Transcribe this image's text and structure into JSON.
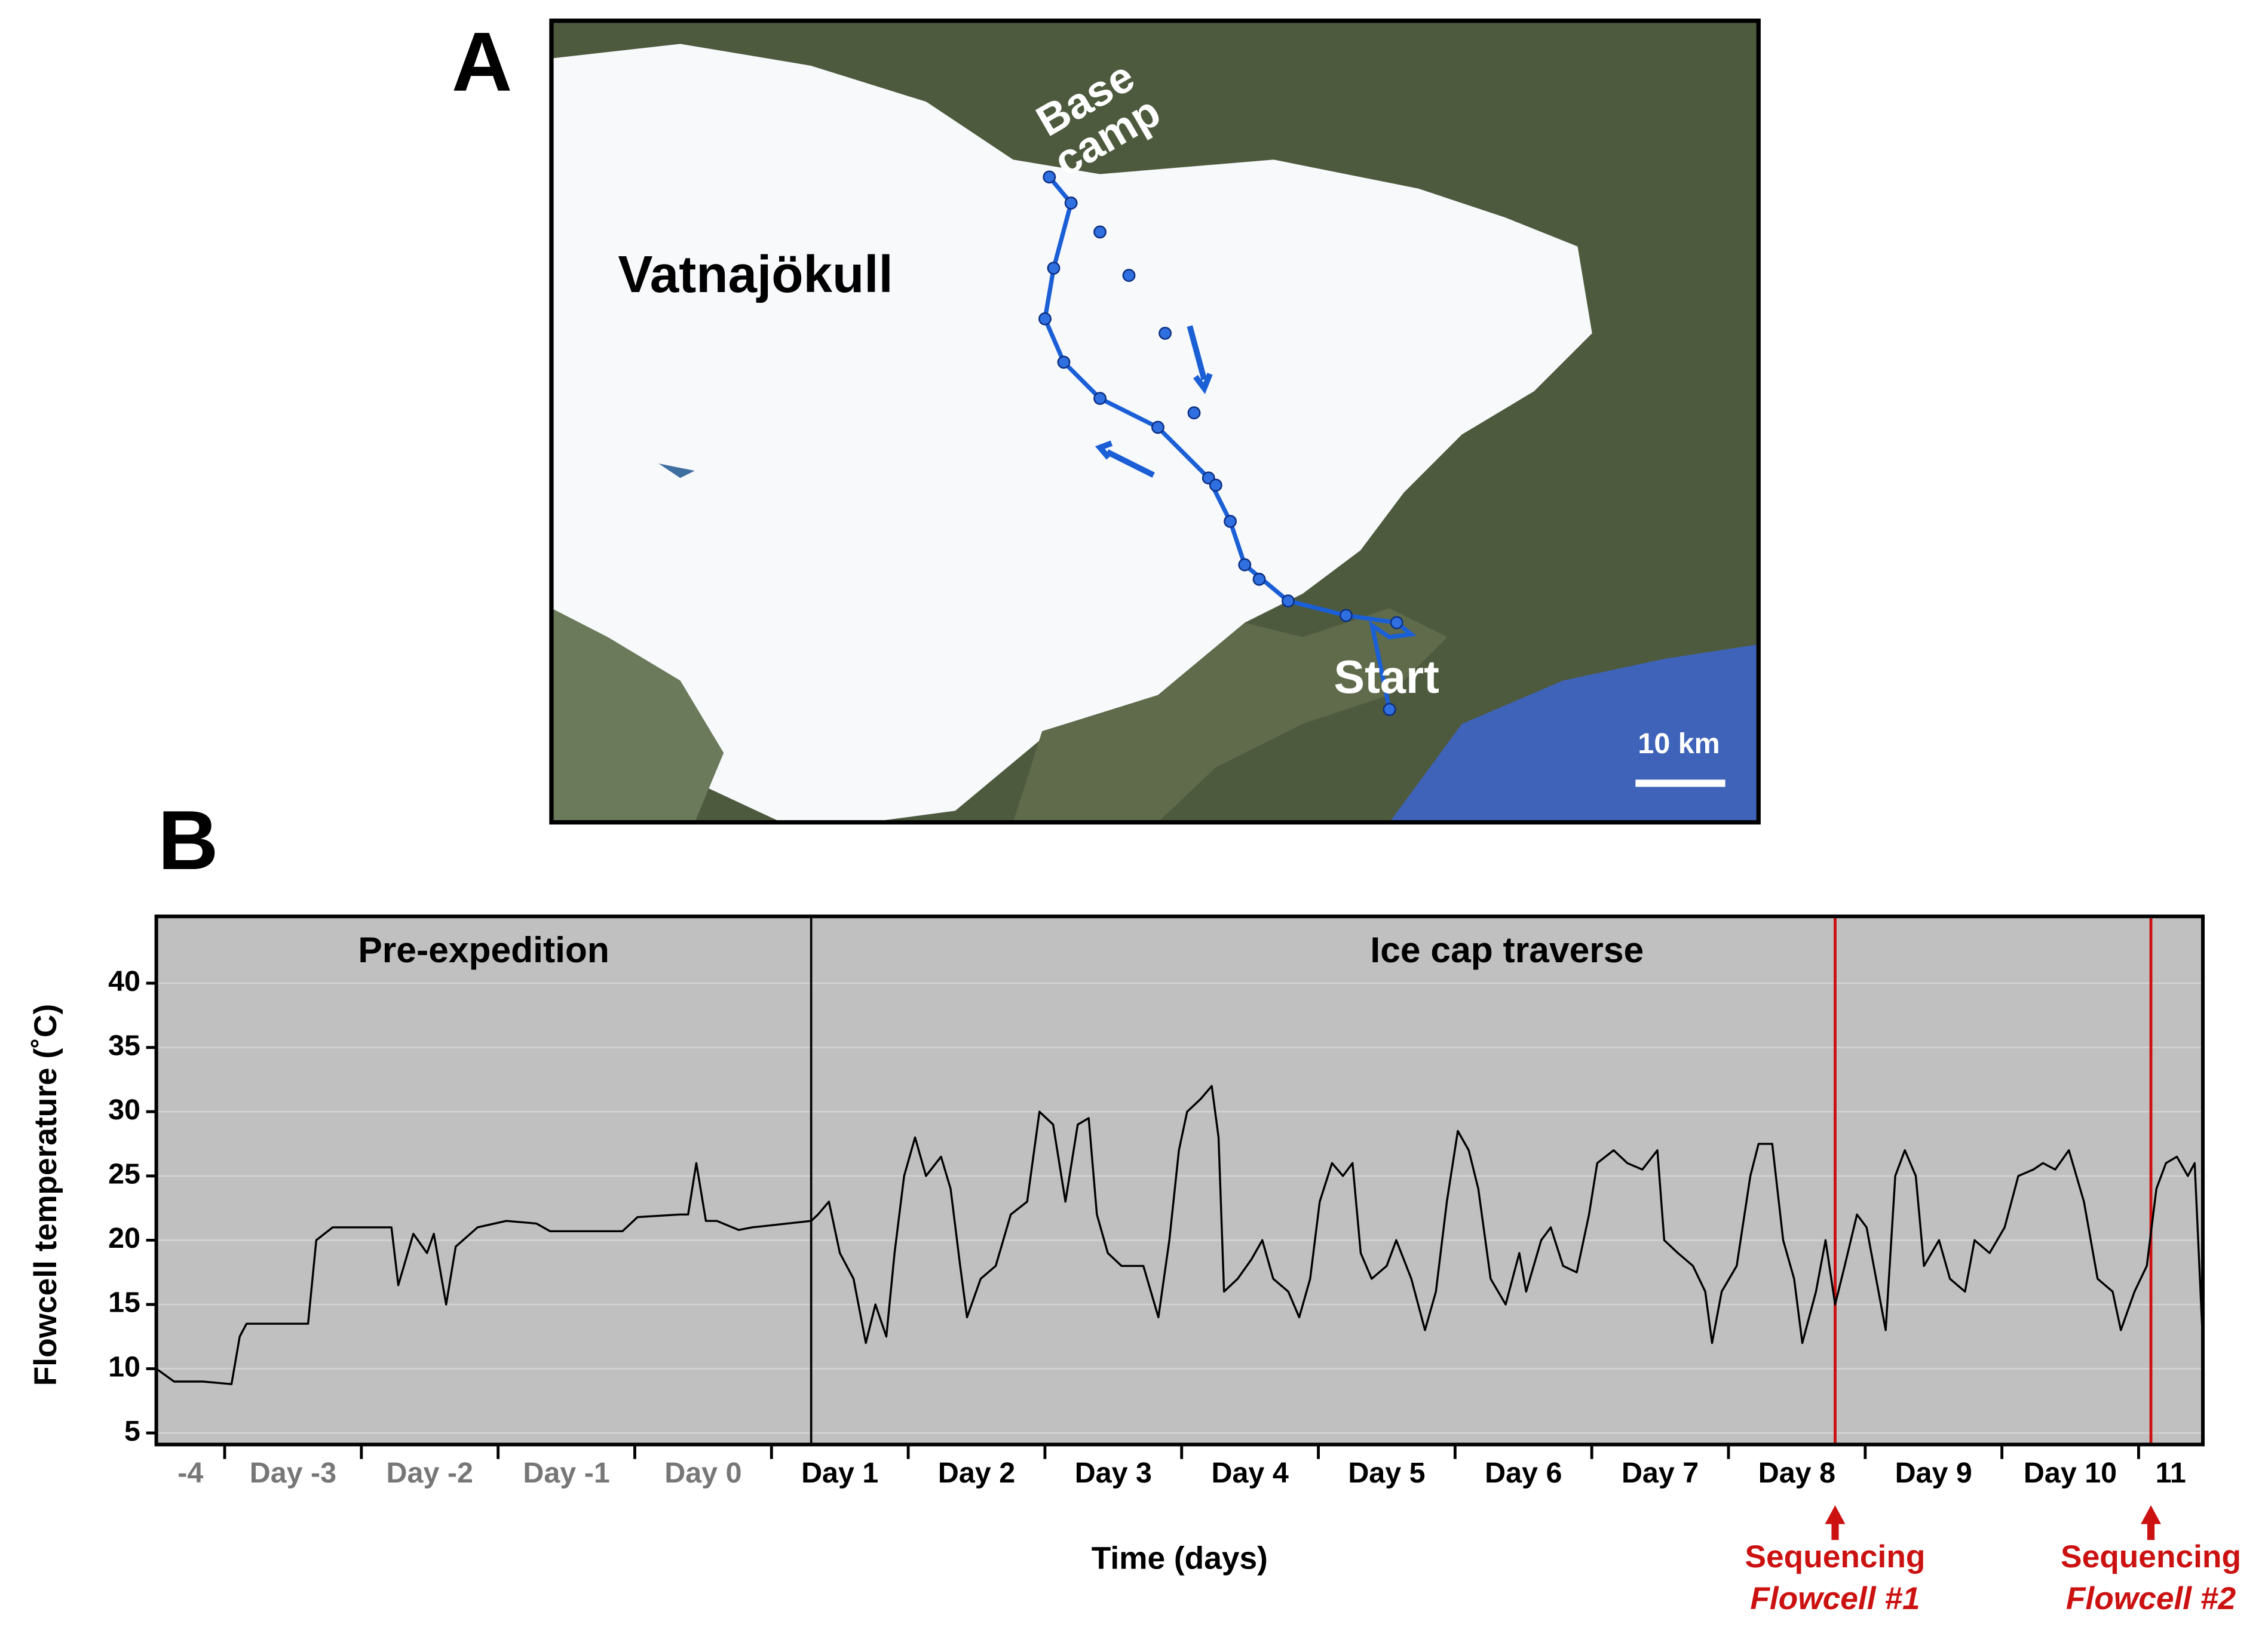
{
  "panel_labels": {
    "a": "A",
    "b": "B"
  },
  "map": {
    "glacier": "Vatnajökull",
    "base_camp": [
      "Base",
      "camp"
    ],
    "start": "Start",
    "scale": "10 km"
  },
  "chart_data": {
    "type": "line",
    "xlabel": "Time (days)",
    "ylabel": "Flowcell temperature (˚C)",
    "xlim": [
      -3.5,
      11.47
    ],
    "ylim": [
      4.1,
      45.2
    ],
    "yticks": [
      5,
      10,
      15,
      20,
      25,
      30,
      35,
      40
    ],
    "xticks": [
      -3,
      -2,
      -1,
      0,
      1,
      2,
      3,
      4,
      5,
      6,
      7,
      8,
      9,
      10,
      11
    ],
    "categories": [
      "-4",
      "Day -3",
      "Day -2",
      "Day -1",
      "Day 0",
      "Day 1",
      "Day 2",
      "Day 3",
      "Day 4",
      "Day 5",
      "Day 6",
      "Day 7",
      "Day 8",
      "Day 9",
      "Day 10",
      "11"
    ],
    "category_colors": [
      "#777777",
      "#777777",
      "#777777",
      "#777777",
      "#777777",
      "#000000",
      "#000000",
      "#000000",
      "#000000",
      "#000000",
      "#000000",
      "#000000",
      "#000000",
      "#000000",
      "#000000",
      "#000000"
    ],
    "background": "#c0c0c0",
    "regions": [
      {
        "label": "Pre-expedition"
      },
      {
        "label": "Ice cap traverse"
      }
    ],
    "divider": {
      "x": 1.29,
      "color": "#000000"
    },
    "events": [
      {
        "x": 8.78,
        "color": "#cc1111",
        "label": "Sequencing",
        "sublabel": "Flowcell #1"
      },
      {
        "x": 11.09,
        "color": "#cc1111",
        "label": "Sequencing",
        "sublabel": "Flowcell #2"
      }
    ],
    "x": [
      -3.5,
      -3.37,
      -3.16,
      -2.95,
      -2.89,
      -2.84,
      -2.74,
      -2.39,
      -2.33,
      -2.21,
      -1.78,
      -1.73,
      -1.62,
      -1.52,
      -1.47,
      -1.38,
      -1.31,
      -1.15,
      -0.94,
      -0.72,
      -0.62,
      -0.09,
      0.02,
      0.33,
      0.39,
      0.45,
      0.52,
      0.6,
      0.76,
      0.86,
      1.29,
      1.34,
      1.42,
      1.5,
      1.6,
      1.69,
      1.76,
      1.84,
      1.9,
      1.97,
      2.05,
      2.13,
      2.24,
      2.31,
      2.38,
      2.43,
      2.53,
      2.64,
      2.75,
      2.87,
      2.96,
      3.06,
      3.15,
      3.24,
      3.32,
      3.38,
      3.46,
      3.56,
      3.72,
      3.83,
      3.91,
      3.98,
      4.04,
      4.14,
      4.22,
      4.27,
      4.31,
      4.41,
      4.51,
      4.59,
      4.67,
      4.78,
      4.86,
      4.94,
      5.01,
      5.1,
      5.18,
      5.25,
      5.31,
      5.39,
      5.5,
      5.57,
      5.68,
      5.78,
      5.86,
      5.94,
      6.02,
      6.1,
      6.17,
      6.26,
      6.37,
      6.47,
      6.52,
      6.63,
      6.7,
      6.79,
      6.89,
      6.98,
      7.04,
      7.16,
      7.26,
      7.37,
      7.48,
      7.53,
      7.63,
      7.74,
      7.83,
      7.88,
      7.95,
      8.06,
      8.16,
      8.22,
      8.32,
      8.4,
      8.48,
      8.54,
      8.64,
      8.71,
      8.78,
      8.85,
      8.94,
      9.01,
      9.08,
      9.15,
      9.22,
      9.29,
      9.37,
      9.43,
      9.54,
      9.62,
      9.73,
      9.8,
      9.91,
      10.02,
      10.12,
      10.23,
      10.3,
      10.39,
      10.49,
      10.6,
      10.7,
      10.81,
      10.87,
      10.97,
      11.06,
      11.13,
      11.2,
      11.28,
      11.36,
      11.41,
      11.47
    ],
    "series": [
      {
        "color": "#000000",
        "values": [
          10,
          9,
          9,
          8.8,
          12.5,
          13.5,
          13.5,
          13.5,
          20,
          21,
          21,
          16.5,
          20.5,
          19,
          20.5,
          15,
          19.5,
          21,
          21.5,
          21.3,
          20.7,
          20.7,
          21.8,
          22,
          22,
          26,
          21.5,
          21.5,
          20.8,
          21,
          21.5,
          22,
          23,
          19,
          17,
          12,
          15,
          12.5,
          19,
          25,
          28,
          25,
          26.5,
          24,
          18,
          14,
          17,
          18,
          22,
          23,
          30,
          29,
          23,
          29,
          29.5,
          22,
          19,
          18,
          18,
          14,
          20,
          27,
          30,
          31,
          32,
          28,
          16,
          17,
          18.5,
          20,
          17,
          16,
          14,
          17,
          23,
          26,
          25,
          26,
          19,
          17,
          18,
          20,
          17,
          13,
          16,
          23,
          28.5,
          27,
          24,
          17,
          15,
          19,
          16,
          20,
          21,
          18,
          17.5,
          22,
          26,
          27,
          26,
          25.5,
          27,
          20,
          19,
          18,
          16,
          12,
          16,
          18,
          25,
          27.5,
          27.5,
          20,
          17,
          12,
          16,
          20,
          15,
          18,
          22,
          21,
          17,
          13,
          25,
          27,
          25,
          18,
          20,
          17,
          16,
          20,
          19,
          21,
          25,
          25.5,
          26,
          25.5,
          27,
          23,
          17,
          16,
          13,
          16,
          18,
          24,
          26,
          26.5,
          25,
          26,
          12
        ]
      }
    ]
  }
}
